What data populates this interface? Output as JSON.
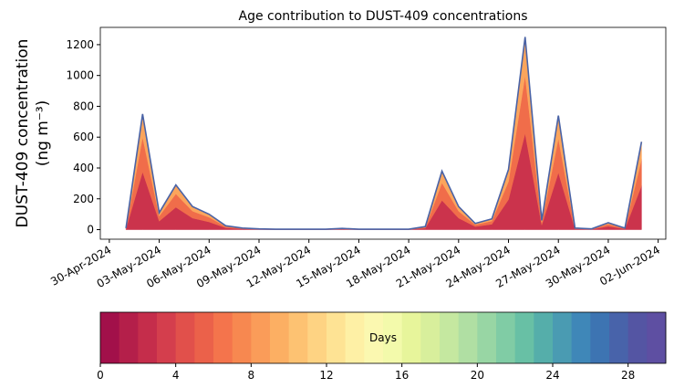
{
  "chart_data": [
    {
      "type": "stacked-area",
      "title": "Age contribution to DUST-409 concentrations",
      "ylabel": [
        "DUST-409 concentration",
        "(ng m⁻³)"
      ],
      "x": [
        "2024-05-01",
        "2024-05-02",
        "2024-05-03",
        "2024-05-04",
        "2024-05-05",
        "2024-05-06",
        "2024-05-07",
        "2024-05-08",
        "2024-05-09",
        "2024-05-10",
        "2024-05-11",
        "2024-05-12",
        "2024-05-13",
        "2024-05-14",
        "2024-05-15",
        "2024-05-16",
        "2024-05-17",
        "2024-05-18",
        "2024-05-19",
        "2024-05-20",
        "2024-05-21",
        "2024-05-22",
        "2024-05-23",
        "2024-05-24",
        "2024-05-25",
        "2024-05-26",
        "2024-05-27",
        "2024-05-28",
        "2024-05-29",
        "2024-05-30",
        "2024-05-31",
        "2024-06-01"
      ],
      "series": [
        {
          "color": "#cb334c",
          "values": [
            5,
            375,
            55,
            145,
            75,
            50,
            12,
            5,
            2,
            1,
            1,
            1,
            1,
            4,
            1,
            1,
            1,
            1,
            10,
            190,
            75,
            20,
            35,
            195,
            625,
            30,
            370,
            5,
            2,
            22,
            5,
            285
          ]
        },
        {
          "color": "#f06d4a",
          "values": [
            3,
            225,
            33,
            87,
            45,
            30,
            8,
            3,
            2,
            1,
            1,
            1,
            1,
            2,
            1,
            1,
            1,
            1,
            6,
            114,
            45,
            12,
            21,
            117,
            375,
            18,
            222,
            3,
            2,
            14,
            3,
            171
          ]
        },
        {
          "color": "#fba55c",
          "values": [
            2,
            150,
            22,
            58,
            30,
            20,
            5,
            2,
            1,
            1,
            1,
            1,
            1,
            2,
            1,
            1,
            1,
            1,
            4,
            76,
            30,
            8,
            14,
            78,
            250,
            12,
            148,
            2,
            1,
            9,
            2,
            114
          ]
        }
      ],
      "outline_color": "#4a63a6",
      "xlim": [
        "2024-04-29T11:00Z",
        "2024-06-02T11:00Z"
      ],
      "xticks": [
        {
          "value": "2024-04-30",
          "label": "30-Apr-2024"
        },
        {
          "value": "2024-05-03",
          "label": "03-May-2024"
        },
        {
          "value": "2024-05-06",
          "label": "06-May-2024"
        },
        {
          "value": "2024-05-09",
          "label": "09-May-2024"
        },
        {
          "value": "2024-05-12",
          "label": "12-May-2024"
        },
        {
          "value": "2024-05-15",
          "label": "15-May-2024"
        },
        {
          "value": "2024-05-18",
          "label": "18-May-2024"
        },
        {
          "value": "2024-05-21",
          "label": "21-May-2024"
        },
        {
          "value": "2024-05-24",
          "label": "24-May-2024"
        },
        {
          "value": "2024-05-27",
          "label": "27-May-2024"
        },
        {
          "value": "2024-05-30",
          "label": "30-May-2024"
        },
        {
          "value": "2024-06-02",
          "label": "02-Jun-2024"
        }
      ],
      "ylim": [
        -62,
        1312
      ],
      "yticks": [
        0,
        200,
        400,
        600,
        800,
        1000,
        1200
      ]
    },
    {
      "type": "colorbar",
      "label": "Days",
      "lim": [
        0,
        30
      ],
      "ticks": [
        0,
        4,
        8,
        12,
        16,
        20,
        24,
        28
      ],
      "colors": [
        "#a2104a",
        "#b41f4a",
        "#c52d4b",
        "#d43e4d",
        "#e1504b",
        "#eb614a",
        "#f4744c",
        "#f78850",
        "#fa9c59",
        "#fcaf63",
        "#fdc272",
        "#fed383",
        "#fee394",
        "#fef0a5",
        "#fbf8b0",
        "#f3faab",
        "#e7f59b",
        "#d8ef9c",
        "#c5e8a0",
        "#b0dfa3",
        "#98d6a4",
        "#80cca5",
        "#68c0a5",
        "#55aeaa",
        "#4a9bb2",
        "#3f87b8",
        "#3d74b2",
        "#4863aa",
        "#5455a3",
        "#5e4fa2"
      ]
    }
  ]
}
